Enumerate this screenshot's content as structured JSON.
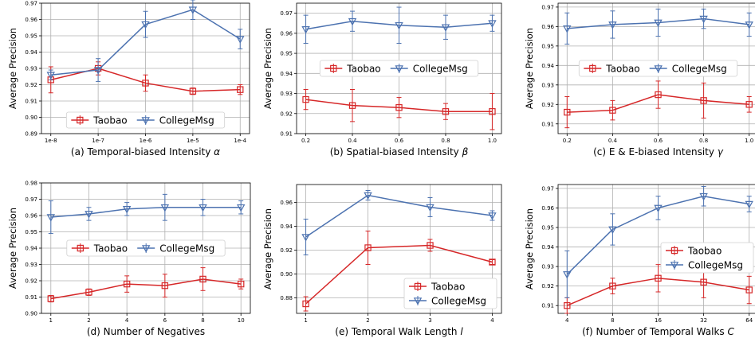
{
  "colors": {
    "taobao": "#d62728",
    "collegemsg": "#4c72b0"
  },
  "chart_data": [
    {
      "type": "line",
      "caption_prefix": "(a) Temporal-biased Intensity ",
      "caption_var": "α",
      "ylabel": "Average Precision",
      "categories": [
        "1e-8",
        "1e-7",
        "1e-6",
        "1e-5",
        "1e-4"
      ],
      "ylim": [
        0.89,
        0.97
      ],
      "yticks": [
        "0.89",
        "0.90",
        "0.91",
        "0.92",
        "0.93",
        "0.94",
        "0.95",
        "0.96",
        "0.97"
      ],
      "legend": {
        "placement": "lower-center",
        "layout": "row"
      },
      "series": [
        {
          "name": "Taobao",
          "marker": "square",
          "color": "#d62728",
          "values": [
            0.923,
            0.93,
            0.921,
            0.916,
            0.917
          ],
          "err": [
            0.008,
            0.004,
            0.005,
            0.002,
            0.003
          ]
        },
        {
          "name": "CollegeMsg",
          "marker": "triangle-down",
          "color": "#4c72b0",
          "values": [
            0.926,
            0.929,
            0.957,
            0.966,
            0.948
          ],
          "err": [
            0.003,
            0.007,
            0.008,
            0.006,
            0.006
          ]
        }
      ]
    },
    {
      "type": "line",
      "caption_prefix": "(b) Spatial-biased Intensity ",
      "caption_var": "β",
      "ylabel": "Average Precision",
      "categories": [
        "0.2",
        "0.4",
        "0.6",
        "0.8",
        "1.0"
      ],
      "ylim": [
        0.91,
        0.975
      ],
      "yticks": [
        "0.91",
        "0.92",
        "0.93",
        "0.94",
        "0.95",
        "0.96",
        "0.97"
      ],
      "legend": {
        "placement": "middle-center",
        "layout": "row"
      },
      "series": [
        {
          "name": "Taobao",
          "marker": "square",
          "color": "#d62728",
          "values": [
            0.927,
            0.924,
            0.923,
            0.921,
            0.921
          ],
          "err": [
            0.005,
            0.008,
            0.005,
            0.004,
            0.009
          ]
        },
        {
          "name": "CollegeMsg",
          "marker": "triangle-down",
          "color": "#4c72b0",
          "values": [
            0.962,
            0.966,
            0.964,
            0.963,
            0.965
          ],
          "err": [
            0.007,
            0.005,
            0.009,
            0.006,
            0.004
          ]
        }
      ]
    },
    {
      "type": "line",
      "caption_prefix": "(c) E & E-biased Intensity ",
      "caption_var": "γ",
      "ylabel": "Average Precision",
      "categories": [
        "0.2",
        "0.4",
        "0.6",
        "0.8",
        "1.0"
      ],
      "ylim": [
        0.905,
        0.972
      ],
      "yticks": [
        "0.91",
        "0.92",
        "0.93",
        "0.94",
        "0.95",
        "0.96",
        "0.97"
      ],
      "legend": {
        "placement": "middle-center",
        "layout": "row"
      },
      "series": [
        {
          "name": "Taobao",
          "marker": "square",
          "color": "#d62728",
          "values": [
            0.916,
            0.917,
            0.925,
            0.922,
            0.92
          ],
          "err": [
            0.008,
            0.005,
            0.007,
            0.009,
            0.004
          ]
        },
        {
          "name": "CollegeMsg",
          "marker": "triangle-down",
          "color": "#4c72b0",
          "values": [
            0.959,
            0.961,
            0.962,
            0.964,
            0.961
          ],
          "err": [
            0.008,
            0.007,
            0.007,
            0.005,
            0.006
          ]
        }
      ]
    },
    {
      "type": "line",
      "caption_prefix": "(d) Number of Negatives",
      "caption_var": "",
      "ylabel": "Average Precision",
      "categories": [
        "1",
        "2",
        "4",
        "6",
        "8",
        "10"
      ],
      "ylim": [
        0.9,
        0.98
      ],
      "yticks": [
        "0.90",
        "0.91",
        "0.92",
        "0.93",
        "0.94",
        "0.95",
        "0.96",
        "0.97",
        "0.98"
      ],
      "legend": {
        "placement": "middle-center",
        "layout": "row"
      },
      "series": [
        {
          "name": "Taobao",
          "marker": "square",
          "color": "#d62728",
          "values": [
            0.909,
            0.913,
            0.918,
            0.917,
            0.921,
            0.918
          ],
          "err": [
            0.002,
            0.002,
            0.005,
            0.007,
            0.007,
            0.003
          ]
        },
        {
          "name": "CollegeMsg",
          "marker": "triangle-down",
          "color": "#4c72b0",
          "values": [
            0.959,
            0.961,
            0.964,
            0.965,
            0.965,
            0.965
          ],
          "err": [
            0.01,
            0.004,
            0.004,
            0.008,
            0.005,
            0.004
          ]
        }
      ]
    },
    {
      "type": "line",
      "caption_prefix": "(e) Temporal Walk Length ",
      "caption_var": "l",
      "ylabel": "Average Precision",
      "categories": [
        "1",
        "2",
        "3",
        "4"
      ],
      "ylim": [
        0.867,
        0.975
      ],
      "yticks": [
        "0.88",
        "0.90",
        "0.92",
        "0.94",
        "0.96"
      ],
      "legend": {
        "placement": "lower-right",
        "layout": "column"
      },
      "series": [
        {
          "name": "Taobao",
          "marker": "square",
          "color": "#d62728",
          "values": [
            0.875,
            0.922,
            0.924,
            0.91
          ],
          "err": [
            0.006,
            0.014,
            0.005,
            0.002
          ]
        },
        {
          "name": "CollegeMsg",
          "marker": "triangle-down",
          "color": "#4c72b0",
          "values": [
            0.931,
            0.966,
            0.956,
            0.949
          ],
          "err": [
            0.015,
            0.004,
            0.008,
            0.004
          ]
        }
      ]
    },
    {
      "type": "line",
      "caption_prefix": "(f) Number of Temporal Walks ",
      "caption_var": "C",
      "ylabel": "Average Precision",
      "categories": [
        "4",
        "8",
        "16",
        "32",
        "64"
      ],
      "ylim": [
        0.906,
        0.972
      ],
      "yticks": [
        "0.91",
        "0.92",
        "0.93",
        "0.94",
        "0.95",
        "0.96",
        "0.97"
      ],
      "legend": {
        "placement": "center-right",
        "layout": "column"
      },
      "series": [
        {
          "name": "Taobao",
          "marker": "square",
          "color": "#d62728",
          "values": [
            0.91,
            0.92,
            0.924,
            0.922,
            0.918
          ],
          "err": [
            0.004,
            0.004,
            0.007,
            0.008,
            0.007
          ]
        },
        {
          "name": "CollegeMsg",
          "marker": "triangle-down",
          "color": "#4c72b0",
          "values": [
            0.926,
            0.949,
            0.96,
            0.966,
            0.962
          ],
          "err": [
            0.012,
            0.008,
            0.006,
            0.005,
            0.004
          ]
        }
      ]
    }
  ]
}
